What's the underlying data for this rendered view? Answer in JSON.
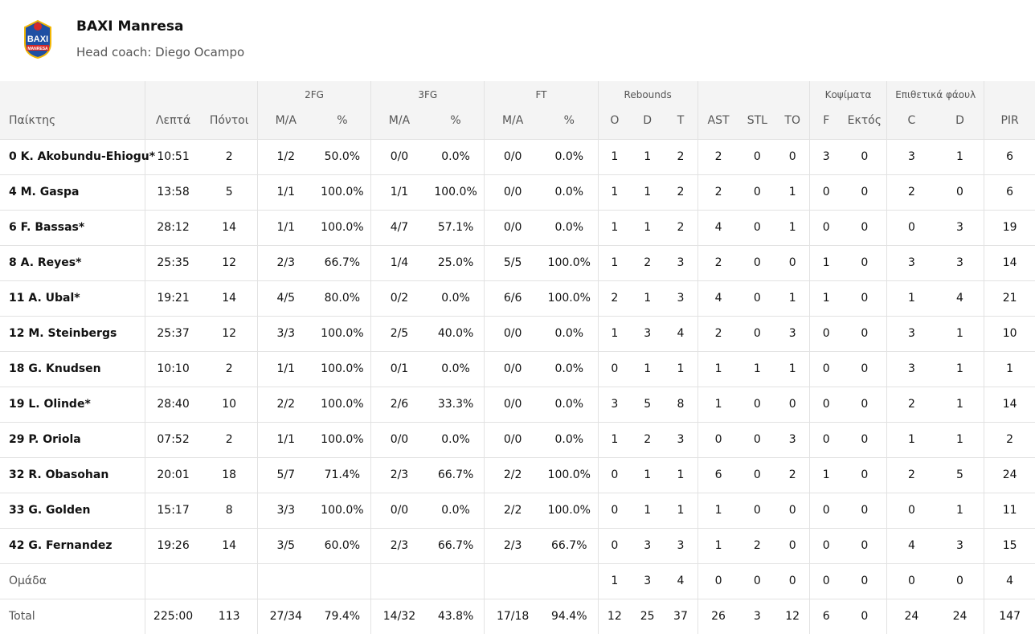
{
  "team": {
    "name": "BAXI Manresa",
    "coach": "Head coach: Diego Ocampo",
    "logo_text": "BAXI",
    "logo_subtext": "MANRESA",
    "colors": {
      "accent": "#1f4fa3",
      "secondary": "#d62828",
      "gold": "#f2b705"
    }
  },
  "groups": {
    "fg2": "2FG",
    "fg3": "3FG",
    "ft": "FT",
    "reb": "Rebounds",
    "blk": "Κοψίματα",
    "fouls": "Επιθετικά φάουλ"
  },
  "columns": {
    "player": "Παίκτης",
    "min": "Λεπτά",
    "pts": "Πόντοι",
    "fg2_ma": "M/A",
    "fg2_pct": "%",
    "fg3_ma": "M/A",
    "fg3_pct": "%",
    "ft_ma": "M/A",
    "ft_pct": "%",
    "o": "O",
    "d": "D",
    "t": "T",
    "ast": "AST",
    "stl": "STL",
    "to": "TO",
    "blk_f": "F",
    "blk_out": "Εκτός",
    "foul_c": "C",
    "foul_d": "D",
    "pir": "PIR"
  },
  "rows": [
    [
      "0 K. Akobundu-Ehiogu*",
      "10:51",
      "2",
      "1/2",
      "50.0%",
      "0/0",
      "0.0%",
      "0/0",
      "0.0%",
      "1",
      "1",
      "2",
      "2",
      "0",
      "0",
      "3",
      "0",
      "3",
      "1",
      "6"
    ],
    [
      "4 M. Gaspa",
      "13:58",
      "5",
      "1/1",
      "100.0%",
      "1/1",
      "100.0%",
      "0/0",
      "0.0%",
      "1",
      "1",
      "2",
      "2",
      "0",
      "1",
      "0",
      "0",
      "2",
      "0",
      "6"
    ],
    [
      "6 F. Bassas*",
      "28:12",
      "14",
      "1/1",
      "100.0%",
      "4/7",
      "57.1%",
      "0/0",
      "0.0%",
      "1",
      "1",
      "2",
      "4",
      "0",
      "1",
      "0",
      "0",
      "0",
      "3",
      "19"
    ],
    [
      "8 A. Reyes*",
      "25:35",
      "12",
      "2/3",
      "66.7%",
      "1/4",
      "25.0%",
      "5/5",
      "100.0%",
      "1",
      "2",
      "3",
      "2",
      "0",
      "0",
      "1",
      "0",
      "3",
      "3",
      "14"
    ],
    [
      "11 A. Ubal*",
      "19:21",
      "14",
      "4/5",
      "80.0%",
      "0/2",
      "0.0%",
      "6/6",
      "100.0%",
      "2",
      "1",
      "3",
      "4",
      "0",
      "1",
      "1",
      "0",
      "1",
      "4",
      "21"
    ],
    [
      "12 M. Steinbergs",
      "25:37",
      "12",
      "3/3",
      "100.0%",
      "2/5",
      "40.0%",
      "0/0",
      "0.0%",
      "1",
      "3",
      "4",
      "2",
      "0",
      "3",
      "0",
      "0",
      "3",
      "1",
      "10"
    ],
    [
      "18 G. Knudsen",
      "10:10",
      "2",
      "1/1",
      "100.0%",
      "0/1",
      "0.0%",
      "0/0",
      "0.0%",
      "0",
      "1",
      "1",
      "1",
      "1",
      "1",
      "0",
      "0",
      "3",
      "1",
      "1"
    ],
    [
      "19 L. Olinde*",
      "28:40",
      "10",
      "2/2",
      "100.0%",
      "2/6",
      "33.3%",
      "0/0",
      "0.0%",
      "3",
      "5",
      "8",
      "1",
      "0",
      "0",
      "0",
      "0",
      "2",
      "1",
      "14"
    ],
    [
      "29 P. Oriola",
      "07:52",
      "2",
      "1/1",
      "100.0%",
      "0/0",
      "0.0%",
      "0/0",
      "0.0%",
      "1",
      "2",
      "3",
      "0",
      "0",
      "3",
      "0",
      "0",
      "1",
      "1",
      "2"
    ],
    [
      "32 R. Obasohan",
      "20:01",
      "18",
      "5/7",
      "71.4%",
      "2/3",
      "66.7%",
      "2/2",
      "100.0%",
      "0",
      "1",
      "1",
      "6",
      "0",
      "2",
      "1",
      "0",
      "2",
      "5",
      "24"
    ],
    [
      "33 G. Golden",
      "15:17",
      "8",
      "3/3",
      "100.0%",
      "0/0",
      "0.0%",
      "2/2",
      "100.0%",
      "0",
      "1",
      "1",
      "1",
      "0",
      "0",
      "0",
      "0",
      "0",
      "1",
      "11"
    ],
    [
      "42 G. Fernandez",
      "19:26",
      "14",
      "3/5",
      "60.0%",
      "2/3",
      "66.7%",
      "2/3",
      "66.7%",
      "0",
      "3",
      "3",
      "1",
      "2",
      "0",
      "0",
      "0",
      "4",
      "3",
      "15"
    ]
  ],
  "team_row": [
    "Ομάδα",
    "",
    "",
    "",
    "",
    "",
    "",
    "",
    "",
    "1",
    "3",
    "4",
    "0",
    "0",
    "0",
    "0",
    "0",
    "0",
    "0",
    "4"
  ],
  "total_row": [
    "Total",
    "225:00",
    "113",
    "27/34",
    "79.4%",
    "14/32",
    "43.8%",
    "17/18",
    "94.4%",
    "12",
    "25",
    "37",
    "26",
    "3",
    "12",
    "6",
    "0",
    "24",
    "24",
    "147"
  ]
}
